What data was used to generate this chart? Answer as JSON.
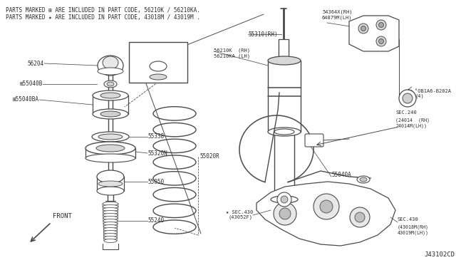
{
  "bg_color": "#ffffff",
  "line_color": "#4a4a4a",
  "text_color": "#2a2a2a",
  "header_line1": "PARTS MARKED ⊞ ARE INCLUDED IN PART CODE, 56210K / 56210KA.",
  "header_line2": "PARTS MARKED ★ ARE INCLUDED IN PART CODE, 43018M / 43019M .",
  "diagram_code": "J43102CD",
  "figsize": [
    6.4,
    3.72
  ],
  "dpi": 100
}
